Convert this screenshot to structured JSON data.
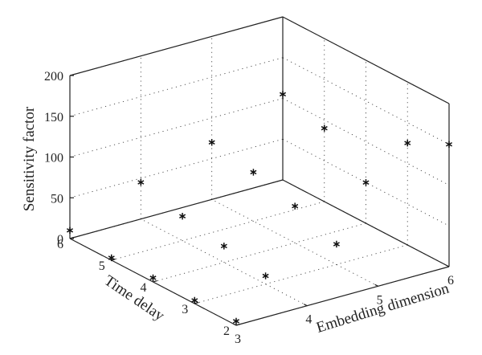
{
  "chart_data": {
    "type": "scatter",
    "title": "",
    "xlabel": "Embedding dimension",
    "ylabel": "Time delay",
    "zlabel": "Sensitivity factor",
    "xlim": [
      3,
      6
    ],
    "ylim": [
      2,
      6
    ],
    "zlim": [
      0,
      200
    ],
    "x_ticks": [
      "3",
      "4",
      "5",
      "6"
    ],
    "y_ticks": [
      "2",
      "3",
      "4",
      "5",
      "6"
    ],
    "z_ticks": [
      "0",
      "50",
      "100",
      "150",
      "200"
    ],
    "grid": true,
    "marker": "asterisk",
    "points": [
      {
        "x": 3,
        "y": 6,
        "z": 10
      },
      {
        "x": 3,
        "y": 5,
        "z": 3
      },
      {
        "x": 3,
        "y": 4,
        "z": 5
      },
      {
        "x": 3,
        "y": 3,
        "z": 4
      },
      {
        "x": 3,
        "y": 2,
        "z": 5
      },
      {
        "x": 4,
        "y": 6,
        "z": 45
      },
      {
        "x": 4,
        "y": 5,
        "z": 30
      },
      {
        "x": 4,
        "y": 4,
        "z": 20
      },
      {
        "x": 4,
        "y": 3,
        "z": 10
      },
      {
        "x": 5,
        "y": 6,
        "z": 70
      },
      {
        "x": 5,
        "y": 5,
        "z": 60
      },
      {
        "x": 5,
        "y": 4,
        "z": 45
      },
      {
        "x": 5,
        "y": 3,
        "z": 25
      },
      {
        "x": 6,
        "y": 6,
        "z": 105
      },
      {
        "x": 6,
        "y": 5,
        "z": 90
      },
      {
        "x": 6,
        "y": 4,
        "z": 50
      },
      {
        "x": 6,
        "y": 3,
        "z": 125
      },
      {
        "x": 6,
        "y": 2,
        "z": 150
      }
    ]
  }
}
